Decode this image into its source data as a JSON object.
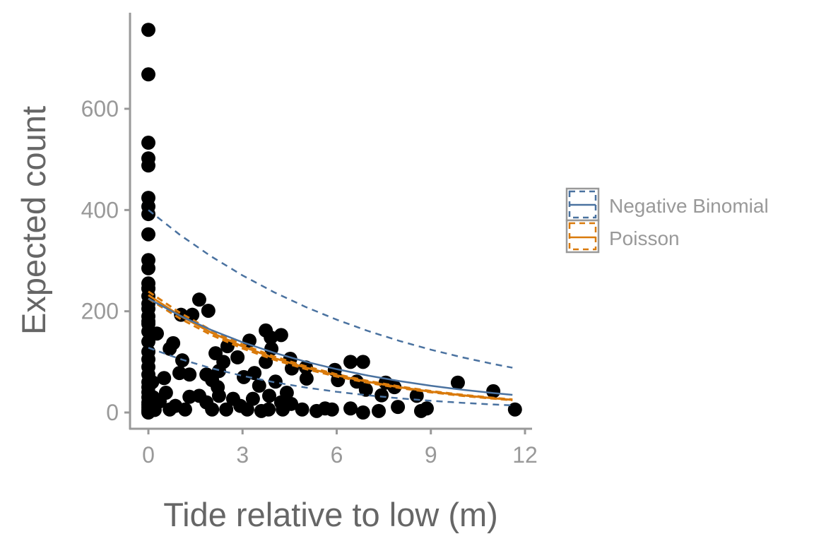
{
  "chart_data": {
    "type": "scatter",
    "title": "",
    "xlabel": "Tide relative to low (m)",
    "ylabel": "Expected count",
    "xlim": [
      -0.58,
      12.2
    ],
    "ylim": [
      -32,
      790
    ],
    "xticks": [
      0,
      3,
      6,
      9,
      12
    ],
    "yticks": [
      0,
      200,
      400,
      600
    ],
    "grid": false,
    "legend_position": "right",
    "points": {
      "x": [
        0,
        0,
        0,
        0,
        0,
        0,
        0,
        0,
        0,
        0,
        0,
        0,
        0,
        0,
        0,
        0,
        0,
        0,
        0,
        0,
        0,
        0,
        0,
        0,
        0,
        0,
        0,
        0,
        0,
        0,
        0,
        0,
        0,
        0,
        0,
        0,
        1.62,
        1.91,
        1.04,
        1.4,
        0.27,
        0.79,
        0.68,
        2.14,
        2.52,
        2.84,
        3.22,
        3.74,
        3.9,
        4.23,
        3.92,
        3.74,
        4.52,
        4.57,
        5.02,
        5.04,
        5.94,
        6.04,
        6.44,
        6.84,
        6.64,
        6.93,
        7.56,
        7.84,
        7.43,
        7.95,
        9.86,
        10.99,
        11.68,
        8.55,
        8.69,
        8.87,
        6.84,
        7.34,
        6.44,
        5.36,
        5.85,
        5.63,
        4.9,
        4.55,
        4.23,
        3.85,
        4.05,
        3.53,
        3.38,
        3.04,
        2.21,
        2.03,
        1.85,
        2.39,
        2.25,
        1.31,
        0.99,
        0.5,
        1.08,
        0.56,
        0.36,
        0.86,
        1.31,
        1.62,
        1.85,
        2.7,
        2.93,
        3.33,
        2.03,
        2.48,
        1.17,
        0.68,
        3.15,
        3.83,
        4.28,
        2.25,
        4.41,
        3.6,
        0.1,
        0.15,
        0.2,
        0.12
      ],
      "y": [
        756,
        668,
        533,
        502,
        488,
        424,
        407,
        392,
        352,
        301,
        285,
        255,
        245,
        230,
        215,
        205,
        190,
        175,
        160,
        140,
        120,
        105,
        90,
        75,
        60,
        50,
        40,
        30,
        20,
        15,
        10,
        5,
        2,
        0,
        245,
        180,
        223,
        201,
        193,
        193,
        156,
        137,
        126,
        117,
        131,
        109,
        142,
        162,
        148,
        153,
        126,
        100,
        106,
        87,
        89,
        67,
        84,
        64,
        100,
        100,
        61,
        45,
        59,
        50,
        34,
        11,
        59,
        42,
        6,
        33,
        3,
        8,
        0,
        3,
        8,
        3,
        6,
        8,
        6,
        17,
        20,
        33,
        61,
        53,
        78,
        70,
        50,
        64,
        75,
        100,
        82,
        75,
        78,
        68,
        103,
        39,
        22,
        13,
        31,
        33,
        20,
        27,
        13,
        27,
        6,
        6,
        6,
        6,
        6,
        6,
        6,
        33,
        39,
        3,
        10,
        30,
        5,
        60
      ]
    },
    "curves": {
      "x": [
        0,
        1,
        2,
        3,
        4,
        5,
        6,
        7,
        8,
        9,
        10,
        11,
        11.6
      ],
      "negative_binomial": {
        "fit": [
          225,
          191.5,
          163.1,
          138.8,
          118.2,
          100.6,
          85.6,
          72.9,
          62.1,
          52.8,
          45.0,
          38.3,
          34.9
        ],
        "upper": [
          400,
          351.2,
          308.4,
          270.8,
          237.8,
          208.8,
          183.4,
          161.0,
          141.4,
          124.1,
          109.0,
          95.7,
          88.5
        ],
        "lower": [
          128,
          105.9,
          87.5,
          72.4,
          59.9,
          49.5,
          40.9,
          33.9,
          28.0,
          23.2,
          19.1,
          15.8,
          14.1
        ]
      },
      "poisson": {
        "fit": [
          232,
          191.5,
          158.0,
          130.4,
          107.6,
          88.8,
          73.3,
          60.5,
          49.9,
          41.2,
          34.0,
          28.1,
          25.0
        ],
        "upper": [
          239,
          197.2,
          162.7,
          134.3,
          110.8,
          91.5,
          75.5,
          62.3,
          51.4,
          42.4,
          35.0,
          28.9,
          25.8
        ],
        "lower": [
          225,
          185.8,
          153.3,
          126.5,
          104.4,
          86.1,
          71.1,
          58.7,
          48.4,
          40.0,
          33.0,
          27.3,
          24.3
        ]
      }
    },
    "legend": [
      {
        "label": "Negative Binomial",
        "color": "#4a72a0"
      },
      {
        "label": "Poisson",
        "color": "#d97a0b"
      }
    ],
    "colors": {
      "points": "#000000",
      "axis": "#999999",
      "tick_text": "#999999",
      "axis_title": "#666666"
    }
  }
}
